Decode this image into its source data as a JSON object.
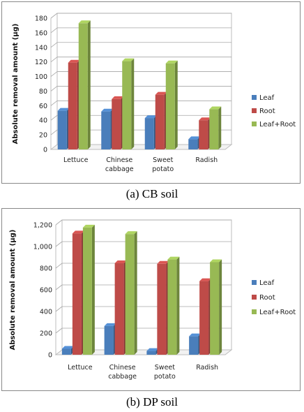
{
  "chart_data": [
    {
      "type": "bar",
      "title": "",
      "caption": "(a) CB soil",
      "xlabel": "",
      "ylabel": "Absolute removal amount  (μg)",
      "categories": [
        [
          "Lettuce"
        ],
        [
          "Chinese",
          "cabbage"
        ],
        [
          "Sweet",
          "potato"
        ],
        [
          "Radish"
        ]
      ],
      "series": [
        {
          "name": "Leaf",
          "color": "#4a7ebb",
          "values": [
            53,
            52,
            43,
            14
          ]
        },
        {
          "name": "Root",
          "color": "#be4b48",
          "values": [
            119,
            69,
            75,
            40
          ]
        },
        {
          "name": "Leaf+Root",
          "color": "#98b954",
          "values": [
            173,
            121,
            118,
            55
          ]
        }
      ],
      "ylim": [
        0,
        180
      ],
      "yticks": [
        "0",
        "20",
        "40",
        "60",
        "80",
        "100",
        "120",
        "140",
        "160",
        "180"
      ],
      "grid": true,
      "legend_position": "right",
      "three_d": true
    },
    {
      "type": "bar",
      "title": "",
      "caption": "(b) DP soil",
      "xlabel": "",
      "ylabel": "Absolute removal amount  (μg)",
      "categories": [
        [
          "Lettuce"
        ],
        [
          "Chinese",
          "cabbage"
        ],
        [
          "Sweet",
          "potato"
        ],
        [
          "Radish"
        ]
      ],
      "series": [
        {
          "name": "Leaf",
          "color": "#4a7ebb",
          "values": [
            55,
            265,
            35,
            170
          ]
        },
        {
          "name": "Root",
          "color": "#be4b48",
          "values": [
            1120,
            845,
            840,
            680
          ]
        },
        {
          "name": "Leaf+Root",
          "color": "#98b954",
          "values": [
            1175,
            1115,
            880,
            855
          ]
        }
      ],
      "ylim": [
        0,
        1200
      ],
      "yticks": [
        "0",
        "200",
        "400",
        "600",
        "800",
        "1,000",
        "1,200"
      ],
      "grid": true,
      "legend_position": "right",
      "three_d": true
    }
  ]
}
